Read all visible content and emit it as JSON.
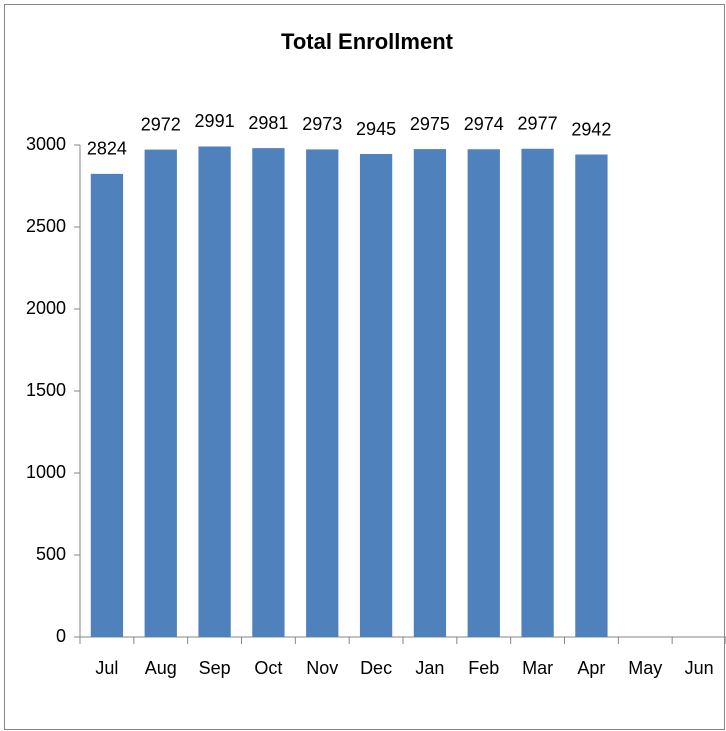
{
  "chart_data": {
    "type": "bar",
    "title": "Total Enrollment",
    "categories": [
      "Jul",
      "Aug",
      "Sep",
      "Oct",
      "Nov",
      "Dec",
      "Jan",
      "Feb",
      "Mar",
      "Apr",
      "May",
      "Jun"
    ],
    "values": [
      2824,
      2972,
      2991,
      2981,
      2973,
      2945,
      2975,
      2974,
      2977,
      2942,
      null,
      null
    ],
    "color": "#4f81bd",
    "ylim": [
      0,
      3000
    ],
    "yticks": [
      0,
      500,
      1000,
      1500,
      2000,
      2500,
      3000
    ],
    "grid": false
  }
}
